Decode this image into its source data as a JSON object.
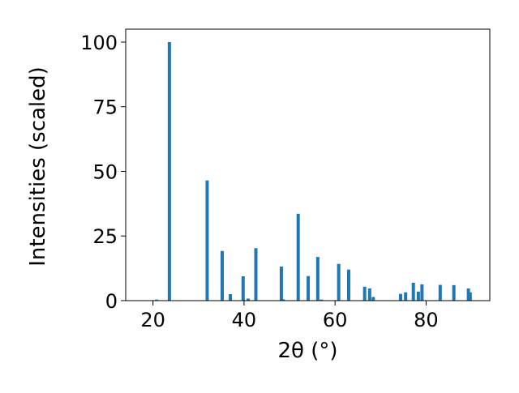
{
  "chart_data": {
    "type": "bar",
    "xlabel": "2θ (°)",
    "ylabel": "Intensities (scaled)",
    "xlim": [
      14,
      94
    ],
    "ylim": [
      0,
      105
    ],
    "xticks": [
      20,
      40,
      60,
      80
    ],
    "yticks": [
      0,
      25,
      50,
      75,
      100
    ],
    "grid": false,
    "bar_color": "#1f77b4",
    "x": [
      20.8,
      23.6,
      31.9,
      35.2,
      37.0,
      39.8,
      40.9,
      42.6,
      48.2,
      48.6,
      51.9,
      54.1,
      56.2,
      57.0,
      60.8,
      63.0,
      66.5,
      67.6,
      68.4,
      74.4,
      75.5,
      77.2,
      78.3,
      79.1,
      83.1,
      86.1,
      89.3,
      89.7
    ],
    "values": [
      0.4,
      100,
      46.5,
      19.2,
      2.5,
      9.4,
      0.8,
      20.3,
      13.2,
      0.5,
      33.6,
      9.5,
      16.9,
      0.4,
      14.2,
      12.0,
      5.4,
      4.7,
      1.4,
      2.6,
      3.2,
      6.9,
      3.5,
      6.3,
      6.1,
      6.0,
      4.7,
      3.2
    ]
  }
}
